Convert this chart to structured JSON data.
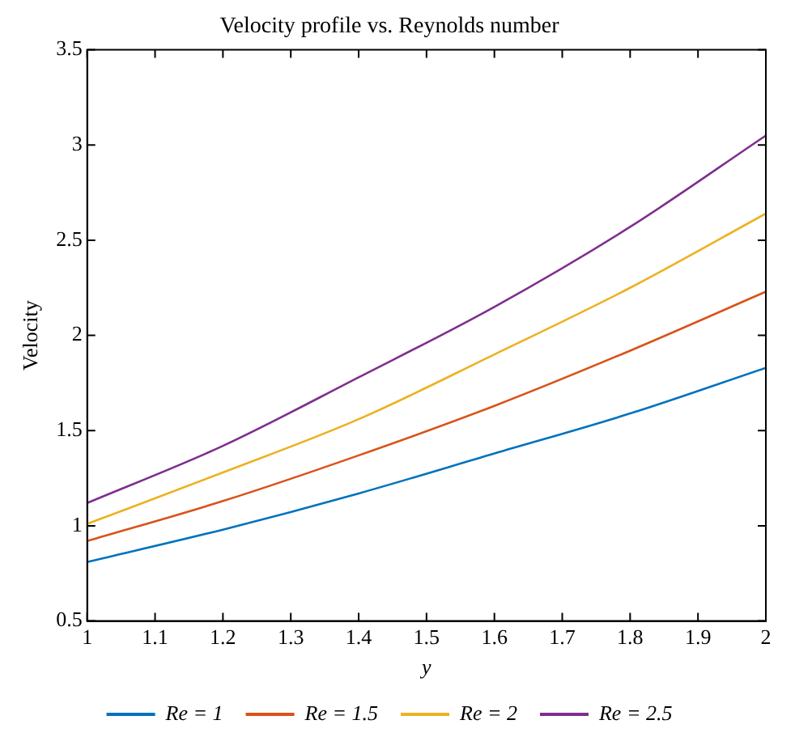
{
  "chart_data": {
    "type": "line",
    "title": "Velocity profile vs. Reynolds number",
    "xlabel": "y",
    "ylabel": "Velocity",
    "x": [
      1,
      1.2,
      1.4,
      1.6,
      1.8,
      2
    ],
    "series": [
      {
        "name": "Re = 1",
        "color": "#0072bd",
        "values": [
          0.81,
          0.98,
          1.17,
          1.38,
          1.59,
          1.83
        ]
      },
      {
        "name": "Re = 1.5",
        "color": "#d95319",
        "values": [
          0.92,
          1.13,
          1.37,
          1.63,
          1.92,
          2.23
        ]
      },
      {
        "name": "Re = 2",
        "color": "#edb120",
        "values": [
          1.01,
          1.28,
          1.56,
          1.9,
          2.25,
          2.64
        ]
      },
      {
        "name": "Re = 2.5",
        "color": "#7e2f8e",
        "values": [
          1.12,
          1.42,
          1.78,
          2.15,
          2.57,
          3.05
        ]
      }
    ],
    "xlim": [
      1,
      2
    ],
    "xticks": [
      1,
      1.1,
      1.2,
      1.3,
      1.4,
      1.5,
      1.6,
      1.7,
      1.8,
      1.9,
      2
    ],
    "ylim": [
      0.5,
      3.5
    ],
    "yticks": [
      0.5,
      1,
      1.5,
      2,
      2.5,
      3,
      3.5
    ],
    "grid": false,
    "legend": "bottom",
    "marker": "none",
    "line_style": "solid"
  }
}
